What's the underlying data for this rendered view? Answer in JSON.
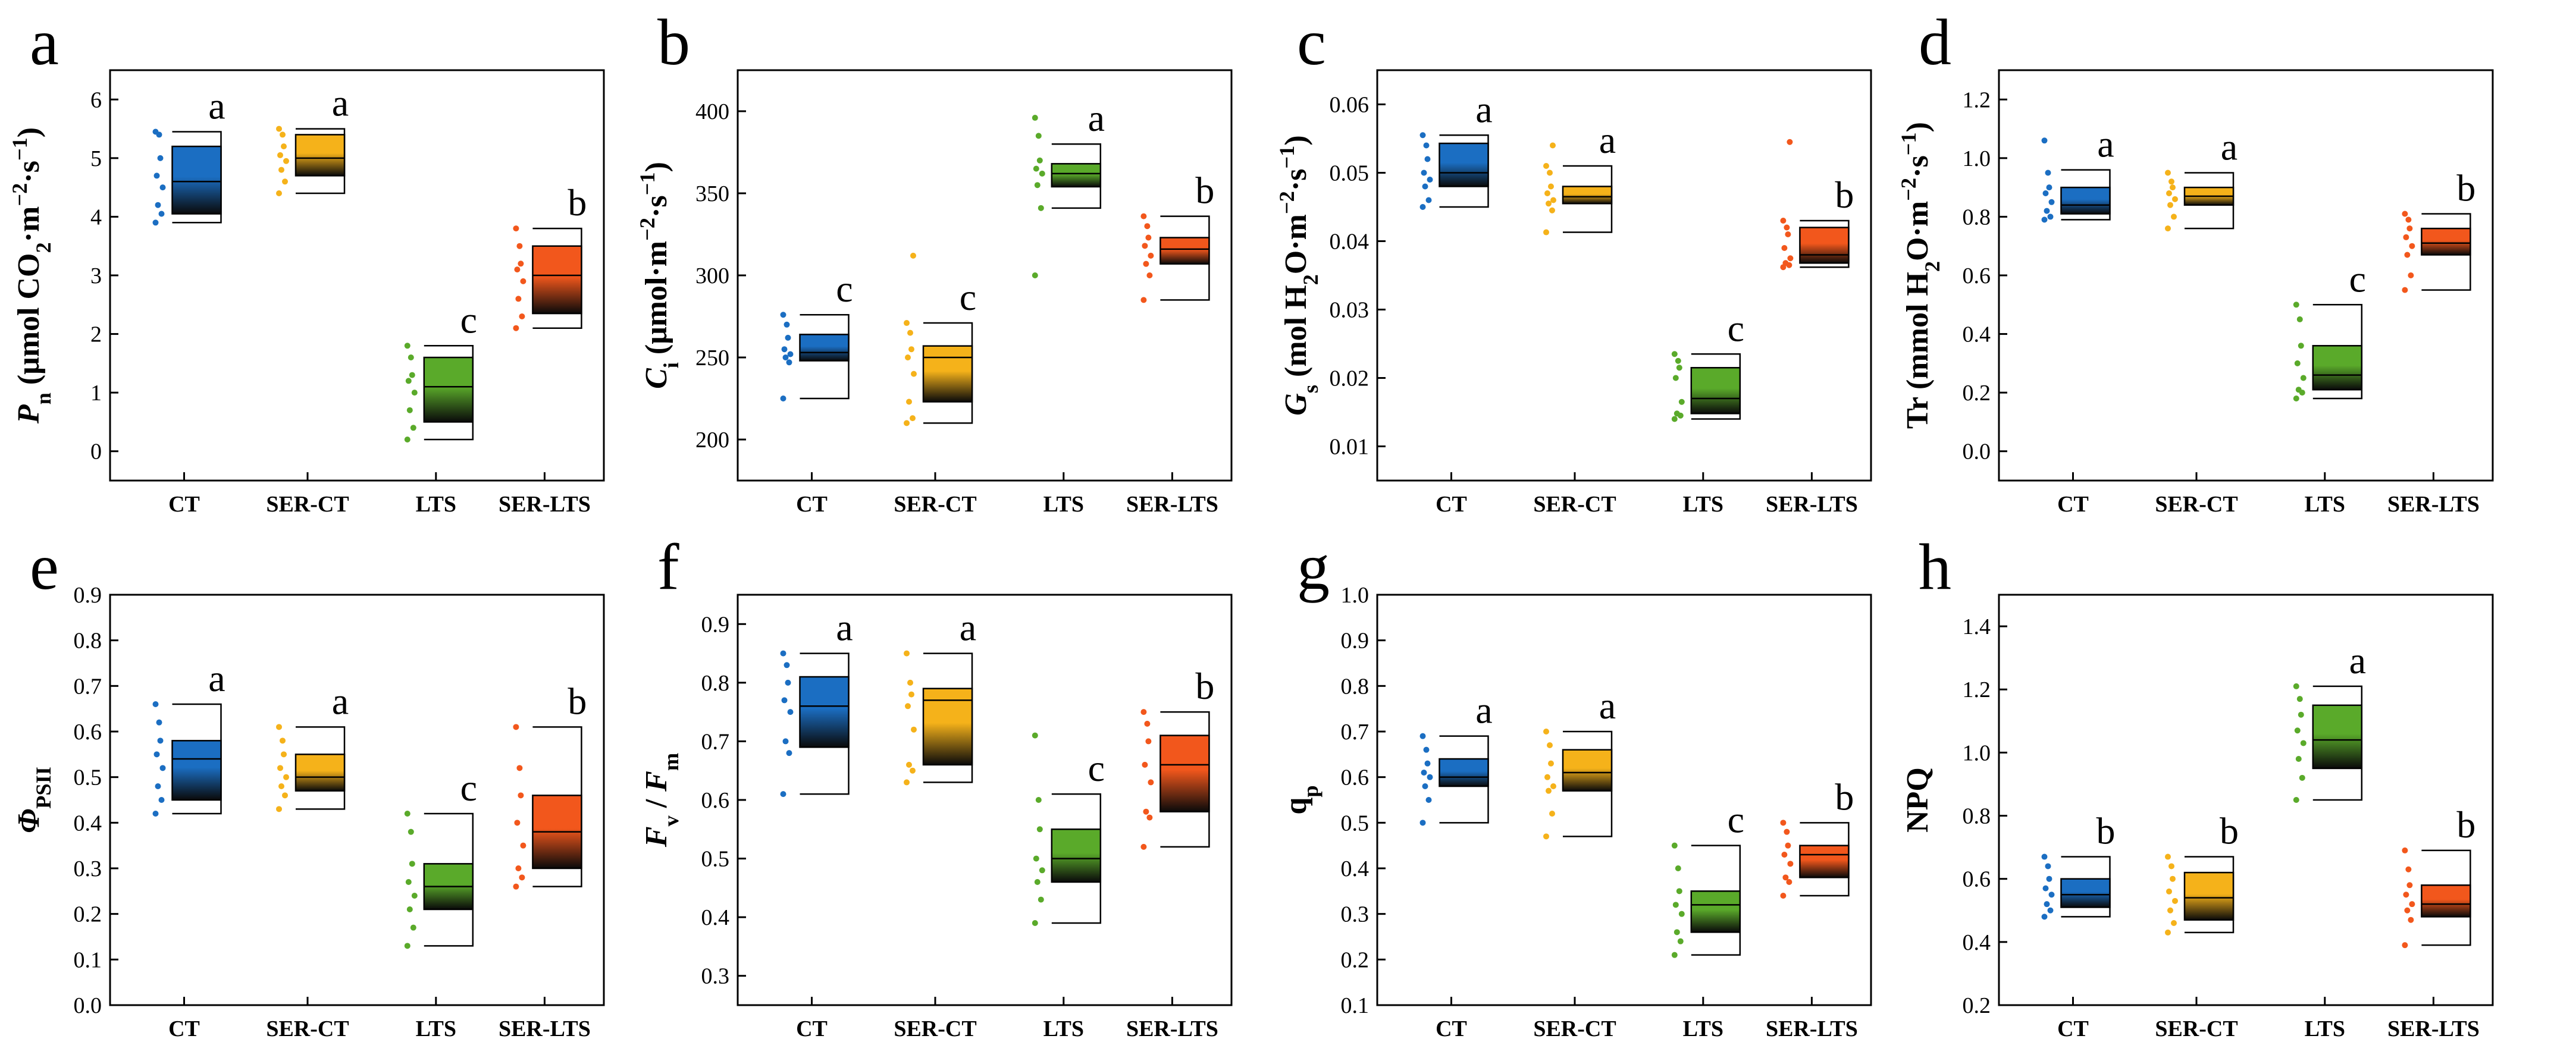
{
  "figure": {
    "groups": [
      "CT",
      "SER-CT",
      "LTS",
      "SER-LTS"
    ],
    "group_colors": [
      "#1b6ec2",
      "#f5b21a",
      "#5aaa2a",
      "#f2571c"
    ]
  },
  "chart_data": [
    {
      "type": "box",
      "panel": "a",
      "ylabel": "Pn (μmol CO2·m−2·s−1)",
      "ylim": [
        -0.5,
        6.5
      ],
      "yticks": [
        "0",
        "1",
        "2",
        "3",
        "4",
        "5",
        "6"
      ],
      "categories": [
        "CT",
        "SER-CT",
        "LTS",
        "SER-LTS"
      ],
      "letters": [
        "a",
        "a",
        "c",
        "b"
      ],
      "boxes": [
        {
          "min": 3.9,
          "q1": 4.05,
          "median": 4.6,
          "q3": 5.2,
          "max": 5.45
        },
        {
          "min": 4.4,
          "q1": 4.7,
          "median": 5.0,
          "q3": 5.4,
          "max": 5.5
        },
        {
          "min": 0.2,
          "q1": 0.5,
          "median": 1.1,
          "q3": 1.6,
          "max": 1.8
        },
        {
          "min": 2.1,
          "q1": 2.35,
          "median": 3.0,
          "q3": 3.5,
          "max": 3.8
        }
      ],
      "points": [
        [
          3.9,
          4.05,
          4.2,
          4.5,
          4.7,
          5.0,
          5.4,
          5.45
        ],
        [
          4.4,
          4.6,
          4.8,
          4.95,
          5.05,
          5.2,
          5.4,
          5.5
        ],
        [
          0.2,
          0.4,
          0.7,
          1.0,
          1.2,
          1.3,
          1.6,
          1.8
        ],
        [
          2.1,
          2.3,
          2.6,
          2.9,
          3.1,
          3.2,
          3.5,
          3.8
        ]
      ]
    },
    {
      "type": "box",
      "panel": "b",
      "ylabel": "Ci (μmol·m−2·s−1)",
      "ylim": [
        175,
        425
      ],
      "yticks": [
        "200",
        "250",
        "300",
        "350",
        "400"
      ],
      "categories": [
        "CT",
        "SER-CT",
        "LTS",
        "SER-LTS"
      ],
      "letters": [
        "c",
        "c",
        "a",
        "b"
      ],
      "boxes": [
        {
          "min": 225,
          "q1": 248,
          "median": 253,
          "q3": 264,
          "max": 276
        },
        {
          "min": 210,
          "q1": 223,
          "median": 250,
          "q3": 257,
          "max": 271
        },
        {
          "min": 341,
          "q1": 354,
          "median": 362,
          "q3": 368,
          "max": 380
        },
        {
          "min": 285,
          "q1": 307,
          "median": 316,
          "q3": 323,
          "max": 336
        }
      ],
      "points": [
        [
          225,
          247,
          250,
          252,
          255,
          262,
          270,
          276
        ],
        [
          210,
          213,
          223,
          240,
          250,
          255,
          265,
          271,
          312
        ],
        [
          300,
          341,
          355,
          362,
          365,
          370,
          385,
          396
        ],
        [
          285,
          300,
          307,
          312,
          318,
          323,
          330,
          336
        ]
      ]
    },
    {
      "type": "box",
      "panel": "c",
      "ylabel": "Gs (mol H2O·m−2·s−1)",
      "ylim": [
        0.005,
        0.065
      ],
      "yticks": [
        "0.01",
        "0.02",
        "0.03",
        "0.04",
        "0.05",
        "0.06"
      ],
      "categories": [
        "CT",
        "SER-CT",
        "LTS",
        "SER-LTS"
      ],
      "letters": [
        "a",
        "a",
        "c",
        "b"
      ],
      "boxes": [
        {
          "min": 0.045,
          "q1": 0.048,
          "median": 0.05,
          "q3": 0.0543,
          "max": 0.0555
        },
        {
          "min": 0.0413,
          "q1": 0.0455,
          "median": 0.0465,
          "q3": 0.048,
          "max": 0.051
        },
        {
          "min": 0.014,
          "q1": 0.0148,
          "median": 0.017,
          "q3": 0.0215,
          "max": 0.0235
        },
        {
          "min": 0.0362,
          "q1": 0.0368,
          "median": 0.038,
          "q3": 0.042,
          "max": 0.043
        }
      ],
      "points": [
        [
          0.045,
          0.046,
          0.048,
          0.049,
          0.05,
          0.052,
          0.054,
          0.0555
        ],
        [
          0.0413,
          0.0445,
          0.0455,
          0.046,
          0.047,
          0.048,
          0.05,
          0.051,
          0.054
        ],
        [
          0.014,
          0.0145,
          0.0148,
          0.0165,
          0.02,
          0.0215,
          0.0225,
          0.0235
        ],
        [
          0.0362,
          0.0365,
          0.0368,
          0.0375,
          0.039,
          0.041,
          0.042,
          0.043,
          0.0545
        ]
      ]
    },
    {
      "type": "box",
      "panel": "d",
      "ylabel": "Tr (mmol H2O·m−2·s−1)",
      "ylim": [
        -0.1,
        1.3
      ],
      "yticks": [
        "0.0",
        "0.2",
        "0.4",
        "0.6",
        "0.8",
        "1.0",
        "1.2"
      ],
      "categories": [
        "CT",
        "SER-CT",
        "LTS",
        "SER-LTS"
      ],
      "letters": [
        "a",
        "a",
        "c",
        "b"
      ],
      "boxes": [
        {
          "min": 0.79,
          "q1": 0.81,
          "median": 0.84,
          "q3": 0.9,
          "max": 0.96
        },
        {
          "min": 0.76,
          "q1": 0.84,
          "median": 0.87,
          "q3": 0.9,
          "max": 0.95
        },
        {
          "min": 0.18,
          "q1": 0.21,
          "median": 0.26,
          "q3": 0.36,
          "max": 0.5
        },
        {
          "min": 0.55,
          "q1": 0.67,
          "median": 0.71,
          "q3": 0.76,
          "max": 0.81
        }
      ],
      "points": [
        [
          0.79,
          0.8,
          0.82,
          0.85,
          0.88,
          0.9,
          0.95,
          1.06
        ],
        [
          0.76,
          0.8,
          0.84,
          0.86,
          0.88,
          0.9,
          0.92,
          0.95
        ],
        [
          0.18,
          0.2,
          0.21,
          0.25,
          0.3,
          0.36,
          0.45,
          0.5
        ],
        [
          0.55,
          0.6,
          0.67,
          0.7,
          0.73,
          0.76,
          0.79,
          0.81
        ]
      ]
    },
    {
      "type": "box",
      "panel": "e",
      "ylabel": "ΦPSII",
      "ylim": [
        0.0,
        0.9
      ],
      "yticks": [
        "0.0",
        "0.1",
        "0.2",
        "0.3",
        "0.4",
        "0.5",
        "0.6",
        "0.7",
        "0.8",
        "0.9"
      ],
      "categories": [
        "CT",
        "SER-CT",
        "LTS",
        "SER-LTS"
      ],
      "letters": [
        "a",
        "a",
        "c",
        "b"
      ],
      "boxes": [
        {
          "min": 0.42,
          "q1": 0.45,
          "median": 0.54,
          "q3": 0.58,
          "max": 0.66
        },
        {
          "min": 0.43,
          "q1": 0.47,
          "median": 0.5,
          "q3": 0.55,
          "max": 0.61
        },
        {
          "min": 0.13,
          "q1": 0.21,
          "median": 0.26,
          "q3": 0.31,
          "max": 0.42
        },
        {
          "min": 0.26,
          "q1": 0.3,
          "median": 0.38,
          "q3": 0.46,
          "max": 0.61
        }
      ],
      "points": [
        [
          0.42,
          0.45,
          0.48,
          0.52,
          0.55,
          0.58,
          0.62,
          0.66
        ],
        [
          0.43,
          0.46,
          0.48,
          0.5,
          0.52,
          0.55,
          0.58,
          0.61
        ],
        [
          0.13,
          0.17,
          0.21,
          0.24,
          0.27,
          0.31,
          0.38,
          0.42
        ],
        [
          0.26,
          0.28,
          0.3,
          0.35,
          0.4,
          0.46,
          0.52,
          0.61
        ]
      ]
    },
    {
      "type": "box",
      "panel": "f",
      "ylabel": "Fv / Fm",
      "ylim": [
        0.25,
        0.95
      ],
      "yticks": [
        "0.3",
        "0.4",
        "0.5",
        "0.6",
        "0.7",
        "0.8",
        "0.9"
      ],
      "categories": [
        "CT",
        "SER-CT",
        "LTS",
        "SER-LTS"
      ],
      "letters": [
        "a",
        "a",
        "c",
        "b"
      ],
      "boxes": [
        {
          "min": 0.61,
          "q1": 0.69,
          "median": 0.76,
          "q3": 0.81,
          "max": 0.85
        },
        {
          "min": 0.63,
          "q1": 0.66,
          "median": 0.77,
          "q3": 0.79,
          "max": 0.85
        },
        {
          "min": 0.39,
          "q1": 0.46,
          "median": 0.5,
          "q3": 0.55,
          "max": 0.61
        },
        {
          "min": 0.52,
          "q1": 0.58,
          "median": 0.66,
          "q3": 0.71,
          "max": 0.75
        }
      ],
      "points": [
        [
          0.61,
          0.68,
          0.7,
          0.75,
          0.77,
          0.8,
          0.83,
          0.85
        ],
        [
          0.63,
          0.65,
          0.66,
          0.72,
          0.76,
          0.78,
          0.8,
          0.85
        ],
        [
          0.39,
          0.43,
          0.46,
          0.48,
          0.5,
          0.55,
          0.6,
          0.71
        ],
        [
          0.52,
          0.57,
          0.58,
          0.63,
          0.66,
          0.7,
          0.73,
          0.75
        ]
      ]
    },
    {
      "type": "box",
      "panel": "g",
      "ylabel": "qp",
      "ylim": [
        0.1,
        1.0
      ],
      "yticks": [
        "0.1",
        "0.2",
        "0.3",
        "0.4",
        "0.5",
        "0.6",
        "0.7",
        "0.8",
        "0.9",
        "1.0"
      ],
      "categories": [
        "CT",
        "SER-CT",
        "LTS",
        "SER-LTS"
      ],
      "letters": [
        "a",
        "a",
        "c",
        "b"
      ],
      "boxes": [
        {
          "min": 0.5,
          "q1": 0.58,
          "median": 0.6,
          "q3": 0.64,
          "max": 0.69
        },
        {
          "min": 0.47,
          "q1": 0.57,
          "median": 0.61,
          "q3": 0.66,
          "max": 0.7
        },
        {
          "min": 0.21,
          "q1": 0.26,
          "median": 0.32,
          "q3": 0.35,
          "max": 0.45
        },
        {
          "min": 0.34,
          "q1": 0.38,
          "median": 0.43,
          "q3": 0.45,
          "max": 0.5
        }
      ],
      "points": [
        [
          0.5,
          0.55,
          0.58,
          0.6,
          0.61,
          0.63,
          0.66,
          0.69
        ],
        [
          0.47,
          0.52,
          0.57,
          0.58,
          0.6,
          0.63,
          0.67,
          0.7
        ],
        [
          0.21,
          0.24,
          0.26,
          0.3,
          0.32,
          0.35,
          0.4,
          0.45
        ],
        [
          0.34,
          0.37,
          0.38,
          0.41,
          0.43,
          0.45,
          0.48,
          0.5
        ]
      ]
    },
    {
      "type": "box",
      "panel": "h",
      "ylabel": "NPQ",
      "ylim": [
        0.2,
        1.5
      ],
      "yticks": [
        "0.2",
        "0.4",
        "0.6",
        "0.8",
        "1.0",
        "1.2",
        "1.4"
      ],
      "categories": [
        "CT",
        "SER-CT",
        "LTS",
        "SER-LTS"
      ],
      "letters": [
        "b",
        "b",
        "a",
        "b"
      ],
      "boxes": [
        {
          "min": 0.48,
          "q1": 0.51,
          "median": 0.55,
          "q3": 0.6,
          "max": 0.67
        },
        {
          "min": 0.43,
          "q1": 0.47,
          "median": 0.54,
          "q3": 0.62,
          "max": 0.67
        },
        {
          "min": 0.85,
          "q1": 0.95,
          "median": 1.04,
          "q3": 1.15,
          "max": 1.21
        },
        {
          "min": 0.39,
          "q1": 0.48,
          "median": 0.52,
          "q3": 0.58,
          "max": 0.69
        }
      ],
      "points": [
        [
          0.48,
          0.5,
          0.52,
          0.55,
          0.57,
          0.6,
          0.64,
          0.67
        ],
        [
          0.43,
          0.46,
          0.5,
          0.53,
          0.56,
          0.6,
          0.64,
          0.67
        ],
        [
          0.85,
          0.92,
          0.98,
          1.03,
          1.07,
          1.12,
          1.17,
          1.21
        ],
        [
          0.39,
          0.47,
          0.5,
          0.52,
          0.55,
          0.58,
          0.63,
          0.69
        ]
      ]
    }
  ]
}
